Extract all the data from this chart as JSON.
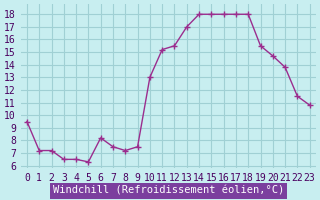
{
  "x": [
    0,
    1,
    2,
    3,
    4,
    5,
    6,
    7,
    8,
    9,
    10,
    11,
    12,
    13,
    14,
    15,
    16,
    17,
    18,
    19,
    20,
    21,
    22,
    23
  ],
  "y": [
    9.5,
    7.2,
    7.2,
    6.5,
    6.5,
    6.3,
    8.2,
    7.5,
    7.2,
    7.5,
    13.0,
    15.2,
    15.5,
    17.0,
    18.0,
    18.0,
    18.0,
    18.0,
    18.0,
    15.5,
    14.7,
    13.8,
    11.5,
    10.8
  ],
  "line_color": "#9B2D8E",
  "marker": "+",
  "bg_color": "#C8EEF0",
  "grid_color": "#A0D0D4",
  "xlabel": "Windchill (Refroidissement éolien,°C)",
  "xlabel_bg": "#7B3F9E",
  "xlabel_color": "#FFFFFF",
  "ylabel_ticks": [
    6,
    7,
    8,
    9,
    10,
    11,
    12,
    13,
    14,
    15,
    16,
    17,
    18
  ],
  "xlim": [
    -0.5,
    23.5
  ],
  "ylim": [
    5.8,
    18.8
  ],
  "tick_fontsize": 7,
  "xlabel_fontsize": 7.5
}
